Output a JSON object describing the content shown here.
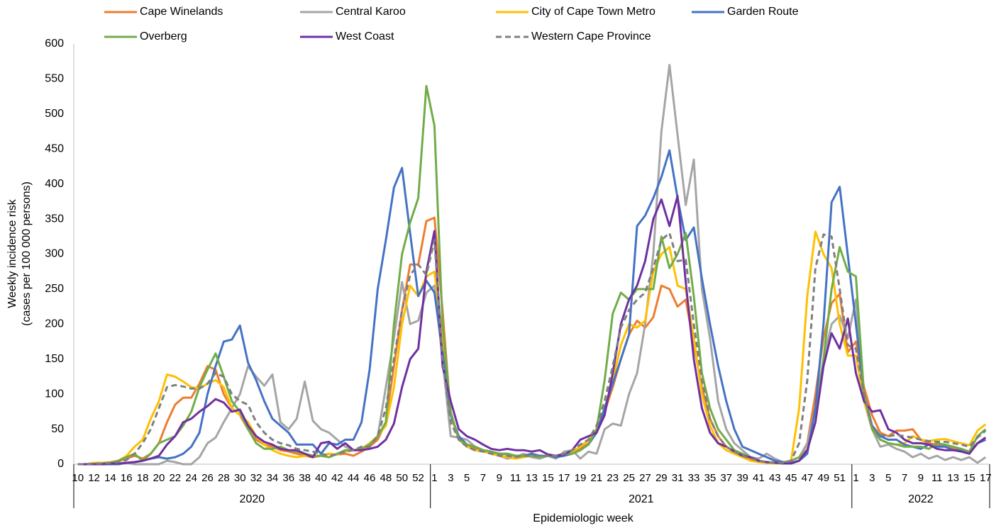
{
  "chart_data": {
    "type": "line",
    "y_label": [
      "Weekly incidence risk",
      "(cases per 100 000 persons)"
    ],
    "x_label": "Epidemiologic week",
    "categories": [
      "10",
      null,
      "12",
      null,
      "14",
      null,
      "16",
      null,
      "18",
      null,
      "20",
      null,
      "22",
      null,
      "24",
      null,
      "26",
      null,
      "28",
      null,
      "30",
      null,
      "32",
      null,
      "34",
      null,
      "36",
      null,
      "38",
      null,
      "40",
      null,
      "42",
      null,
      "44",
      null,
      "46",
      null,
      "48",
      null,
      "50",
      null,
      "52",
      null,
      "1",
      null,
      "3",
      null,
      "5",
      null,
      "7",
      null,
      "9",
      null,
      "11",
      null,
      "13",
      null,
      "15",
      null,
      "17",
      null,
      "19",
      null,
      "21",
      null,
      "23",
      null,
      "25",
      null,
      "27",
      null,
      "29",
      null,
      "31",
      null,
      "33",
      null,
      "35",
      null,
      "37",
      null,
      "39",
      null,
      "41",
      null,
      "43",
      null,
      "45",
      null,
      "47",
      null,
      "49",
      null,
      "51",
      null,
      "1",
      null,
      "3",
      null,
      "5",
      null,
      "7",
      null,
      "9",
      null,
      "11",
      null,
      "13",
      null,
      "15",
      null,
      "17"
    ],
    "groups": [
      "2020",
      "2021",
      "2022"
    ],
    "ylim": [
      0,
      600
    ],
    "yticks": [
      0,
      50,
      100,
      150,
      200,
      250,
      300,
      350,
      400,
      450,
      500,
      550,
      600
    ],
    "grid": false,
    "legend": "top",
    "series": [
      {
        "name": "Cape Winelands",
        "color": "#ED7D31",
        "values": [
          0,
          0,
          1,
          2,
          2,
          4,
          8,
          12,
          8,
          15,
          30,
          60,
          85,
          95,
          95,
          115,
          140,
          135,
          100,
          80,
          70,
          50,
          35,
          28,
          25,
          20,
          18,
          15,
          12,
          10,
          12,
          15,
          14,
          15,
          12,
          18,
          25,
          35,
          60,
          140,
          220,
          285,
          285,
          347,
          352,
          220,
          70,
          40,
          28,
          22,
          20,
          18,
          15,
          14,
          12,
          12,
          11,
          12,
          12,
          12,
          15,
          18,
          22,
          30,
          45,
          75,
          110,
          150,
          185,
          205,
          195,
          210,
          255,
          250,
          225,
          235,
          170,
          110,
          65,
          40,
          25,
          18,
          10,
          8,
          5,
          3,
          2,
          1,
          1,
          5,
          30,
          100,
          180,
          230,
          243,
          160,
          175,
          110,
          70,
          45,
          40,
          48,
          48,
          50,
          35,
          30,
          28,
          25,
          22,
          20,
          18,
          30,
          35
        ]
      },
      {
        "name": "Central Karoo",
        "color": "#A5A5A5",
        "values": [
          0,
          0,
          0,
          0,
          0,
          0,
          2,
          0,
          0,
          0,
          0,
          5,
          3,
          0,
          0,
          10,
          30,
          38,
          60,
          80,
          100,
          140,
          125,
          112,
          128,
          60,
          50,
          65,
          118,
          62,
          50,
          45,
          35,
          25,
          20,
          22,
          30,
          40,
          110,
          180,
          260,
          200,
          205,
          245,
          255,
          150,
          40,
          38,
          35,
          25,
          20,
          15,
          12,
          8,
          10,
          15,
          10,
          8,
          12,
          8,
          18,
          20,
          8,
          18,
          15,
          50,
          58,
          55,
          100,
          130,
          200,
          300,
          475,
          570,
          470,
          370,
          435,
          250,
          180,
          90,
          50,
          30,
          20,
          10,
          8,
          15,
          8,
          3,
          5,
          10,
          30,
          80,
          150,
          200,
          212,
          180,
          235,
          90,
          50,
          25,
          28,
          22,
          18,
          10,
          15,
          8,
          12,
          6,
          10,
          6,
          10,
          2,
          10
        ]
      },
      {
        "name": "City of Cape Town Metro",
        "color": "#FFC000",
        "values": [
          0,
          0,
          2,
          2,
          3,
          5,
          12,
          25,
          35,
          65,
          90,
          128,
          125,
          118,
          110,
          108,
          115,
          120,
          110,
          80,
          70,
          60,
          40,
          28,
          20,
          15,
          12,
          10,
          12,
          12,
          12,
          15,
          14,
          18,
          20,
          22,
          30,
          40,
          55,
          110,
          200,
          255,
          240,
          268,
          275,
          180,
          70,
          35,
          25,
          20,
          18,
          15,
          12,
          10,
          8,
          10,
          12,
          12,
          12,
          12,
          15,
          18,
          25,
          35,
          50,
          80,
          120,
          170,
          200,
          195,
          205,
          275,
          300,
          310,
          255,
          250,
          180,
          100,
          55,
          30,
          20,
          15,
          10,
          5,
          3,
          2,
          1,
          1,
          5,
          80,
          240,
          332,
          300,
          280,
          200,
          155,
          155,
          90,
          55,
          35,
          30,
          28,
          30,
          40,
          35,
          33,
          35,
          36,
          33,
          30,
          27,
          48,
          57
        ]
      },
      {
        "name": "Garden Route",
        "color": "#4472C4",
        "values": [
          0,
          0,
          0,
          0,
          0,
          0,
          2,
          3,
          5,
          8,
          10,
          8,
          10,
          15,
          25,
          45,
          100,
          140,
          175,
          178,
          198,
          145,
          120,
          90,
          65,
          55,
          45,
          28,
          28,
          28,
          15,
          30,
          28,
          35,
          35,
          60,
          135,
          250,
          320,
          395,
          423,
          330,
          240,
          262,
          245,
          160,
          70,
          40,
          28,
          25,
          20,
          18,
          15,
          15,
          12,
          12,
          15,
          12,
          12,
          10,
          12,
          15,
          20,
          28,
          45,
          80,
          115,
          150,
          185,
          340,
          355,
          380,
          410,
          448,
          380,
          320,
          338,
          265,
          200,
          140,
          90,
          50,
          25,
          20,
          15,
          10,
          5,
          3,
          2,
          5,
          15,
          80,
          200,
          374,
          396,
          298,
          200,
          100,
          55,
          40,
          35,
          35,
          28,
          25,
          22,
          28,
          25,
          25,
          20,
          20,
          18,
          30,
          35
        ]
      },
      {
        "name": "Overberg",
        "color": "#70AD47",
        "values": [
          0,
          0,
          0,
          1,
          2,
          5,
          10,
          15,
          5,
          15,
          30,
          35,
          40,
          55,
          75,
          110,
          135,
          158,
          125,
          90,
          75,
          50,
          30,
          22,
          22,
          25,
          20,
          18,
          15,
          12,
          12,
          10,
          15,
          20,
          20,
          22,
          28,
          40,
          60,
          200,
          300,
          345,
          380,
          540,
          483,
          200,
          75,
          35,
          28,
          25,
          20,
          18,
          15,
          15,
          12,
          12,
          12,
          10,
          12,
          12,
          15,
          15,
          20,
          28,
          50,
          120,
          215,
          245,
          235,
          250,
          250,
          250,
          325,
          280,
          300,
          330,
          240,
          130,
          80,
          50,
          35,
          20,
          15,
          10,
          5,
          3,
          2,
          2,
          5,
          10,
          20,
          60,
          150,
          250,
          310,
          275,
          268,
          100,
          50,
          35,
          30,
          28,
          25,
          25,
          25,
          22,
          30,
          28,
          25,
          22,
          18,
          40,
          50
        ]
      },
      {
        "name": "West Coast",
        "color": "#7030A0",
        "values": [
          0,
          0,
          0,
          0,
          1,
          1,
          2,
          3,
          5,
          8,
          12,
          28,
          40,
          60,
          65,
          75,
          83,
          93,
          88,
          75,
          78,
          55,
          40,
          32,
          28,
          22,
          20,
          20,
          15,
          10,
          30,
          32,
          22,
          30,
          20,
          20,
          22,
          25,
          35,
          58,
          110,
          150,
          165,
          275,
          333,
          140,
          90,
          50,
          40,
          35,
          28,
          22,
          20,
          22,
          20,
          20,
          18,
          20,
          14,
          12,
          14,
          20,
          35,
          40,
          45,
          70,
          130,
          200,
          235,
          255,
          290,
          350,
          378,
          340,
          383,
          260,
          150,
          80,
          45,
          30,
          25,
          18,
          12,
          10,
          5,
          3,
          2,
          1,
          1,
          5,
          20,
          60,
          140,
          187,
          165,
          208,
          130,
          90,
          75,
          77,
          50,
          45,
          35,
          30,
          30,
          28,
          22,
          20,
          20,
          18,
          15,
          30,
          38
        ]
      },
      {
        "name": "Western Cape Province",
        "color": "#7F7F7F",
        "dash": true,
        "values": [
          0,
          0,
          1,
          1,
          2,
          3,
          6,
          15,
          30,
          50,
          80,
          110,
          113,
          111,
          108,
          108,
          115,
          130,
          125,
          100,
          90,
          85,
          60,
          45,
          35,
          30,
          27,
          22,
          20,
          18,
          15,
          12,
          14,
          18,
          20,
          25,
          25,
          40,
          80,
          150,
          220,
          270,
          285,
          270,
          320,
          150,
          60,
          35,
          25,
          20,
          18,
          15,
          12,
          12,
          10,
          12,
          12,
          12,
          12,
          12,
          15,
          20,
          28,
          35,
          55,
          90,
          140,
          195,
          220,
          235,
          245,
          280,
          320,
          330,
          290,
          292,
          200,
          120,
          65,
          40,
          25,
          18,
          12,
          8,
          5,
          3,
          2,
          2,
          5,
          30,
          120,
          280,
          328,
          325,
          250,
          170,
          165,
          100,
          55,
          42,
          40,
          42,
          40,
          38,
          35,
          33,
          32,
          32,
          30,
          28,
          25,
          38,
          48
        ]
      }
    ]
  }
}
